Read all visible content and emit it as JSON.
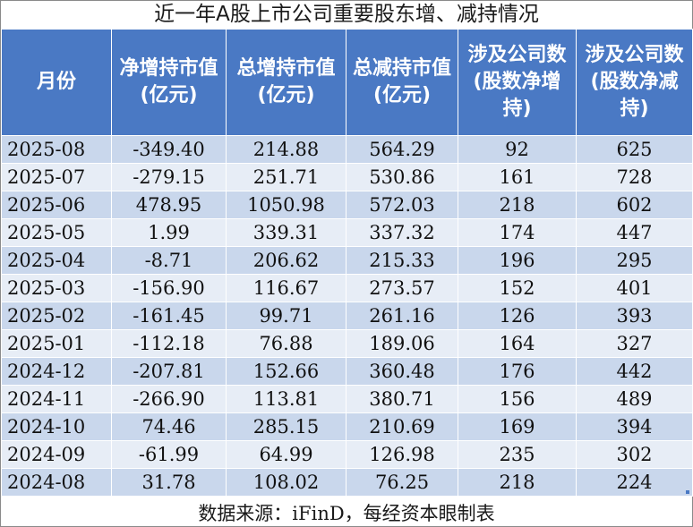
{
  "title": "近一年A股上市公司重要股东增、减持情况",
  "table": {
    "headers": [
      "月份",
      "净增持市值(亿元)",
      "总增持市值(亿元)",
      "总减持市值(亿元)",
      "涉及公司数(股数净增持)",
      "涉及公司数(股数净减持)"
    ],
    "rows": [
      [
        "2025-08",
        "-349.40",
        "214.88",
        "564.29",
        "92",
        "625"
      ],
      [
        "2025-07",
        "-279.15",
        "251.71",
        "530.86",
        "161",
        "728"
      ],
      [
        "2025-06",
        "478.95",
        "1050.98",
        "572.03",
        "218",
        "602"
      ],
      [
        "2025-05",
        "1.99",
        "339.31",
        "337.32",
        "174",
        "447"
      ],
      [
        "2025-04",
        "-8.71",
        "206.62",
        "215.33",
        "196",
        "295"
      ],
      [
        "2025-03",
        "-156.90",
        "116.67",
        "273.57",
        "152",
        "401"
      ],
      [
        "2025-02",
        "-161.45",
        "99.71",
        "261.16",
        "126",
        "393"
      ],
      [
        "2025-01",
        "-112.18",
        "76.88",
        "189.06",
        "164",
        "327"
      ],
      [
        "2024-12",
        "-207.81",
        "152.66",
        "360.48",
        "176",
        "442"
      ],
      [
        "2024-11",
        "-266.90",
        "113.81",
        "380.71",
        "156",
        "489"
      ],
      [
        "2024-10",
        "74.46",
        "285.15",
        "210.69",
        "169",
        "394"
      ],
      [
        "2024-09",
        "-61.99",
        "64.99",
        "126.98",
        "235",
        "302"
      ],
      [
        "2024-08",
        "31.78",
        "108.02",
        "76.25",
        "218",
        "224"
      ]
    ]
  },
  "source": "数据来源：iFinD，每经资本眼制表",
  "colors": {
    "header_bg": "#4a79c4",
    "row_odd": "#c9d7ec",
    "row_even": "#e7edf6"
  }
}
